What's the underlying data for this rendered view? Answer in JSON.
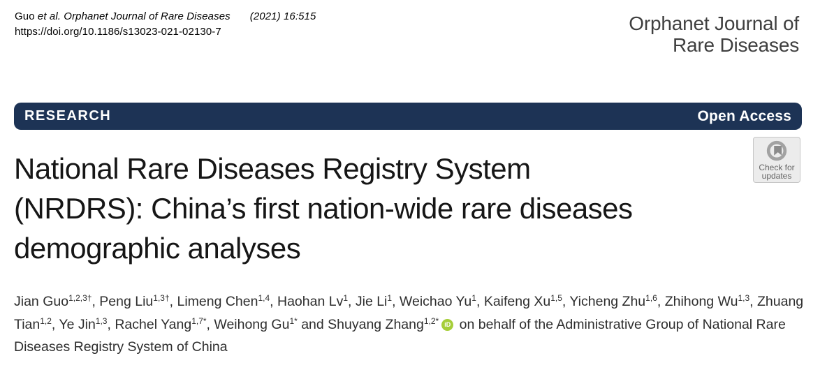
{
  "header": {
    "citation_author": "Guo ",
    "citation_journal_italic": "et al. Orphanet Journal of Rare Diseases",
    "citation_issue": "(2021) 16:515",
    "doi": "https://doi.org/10.1186/s13023-021-02130-7",
    "journal_name_line1": "Orphanet Journal of",
    "journal_name_line2": "Rare Diseases"
  },
  "banner": {
    "left_label": "RESEARCH",
    "right_label": "Open Access",
    "background_color": "#1d3355",
    "text_color": "#ffffff"
  },
  "check_updates_badge": {
    "line1": "Check for",
    "line2": "updates",
    "icon": "crossmark-circle-icon",
    "background_color": "#ececec",
    "text_color": "#666666"
  },
  "article": {
    "title_lines": [
      "National Rare Diseases Registry System",
      "(NRDRS): China’s first nation-wide rare diseases",
      "demographic analyses"
    ]
  },
  "byline": {
    "authors": [
      {
        "name": "Jian Guo",
        "sup": "1,2,3†"
      },
      {
        "name": "Peng Liu",
        "sup": "1,3†"
      },
      {
        "name": "Limeng Chen",
        "sup": "1,4"
      },
      {
        "name": "Haohan Lv",
        "sup": "1"
      },
      {
        "name": "Jie Li",
        "sup": "1"
      },
      {
        "name": "Weichao Yu",
        "sup": "1"
      },
      {
        "name": "Kaifeng Xu",
        "sup": "1,5"
      },
      {
        "name": "Yicheng Zhu",
        "sup": "1,6"
      },
      {
        "name": "Zhihong Wu",
        "sup": "1,3"
      },
      {
        "name": "Zhuang Tian",
        "sup": "1,2"
      },
      {
        "name": "Ye Jin",
        "sup": "1,3"
      },
      {
        "name": "Rachel Yang",
        "sup": "1,7*"
      },
      {
        "name": "Weihong Gu",
        "sup": "1*"
      },
      {
        "name": "Shuyang Zhang",
        "sup": "1,2*",
        "orcid": true
      }
    ],
    "separator": ", ",
    "last_separator": " and ",
    "orcid_icon_label": "iD",
    "orcid_color": "#a6ce39",
    "suffix": " on behalf of the Administrative Group of National Rare Diseases Registry System of China"
  }
}
